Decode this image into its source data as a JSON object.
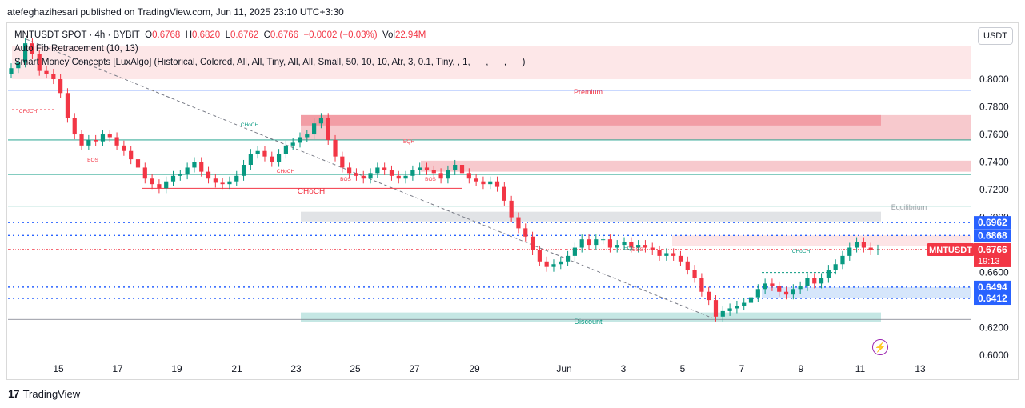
{
  "header": {
    "published_by": "atefeghazihesari published on TradingView.com, Jun 11, 2025 23:10 UTC+3:30"
  },
  "legend": {
    "symbol": "MNTUSDT SPOT · 4h · BYBIT",
    "o_label": "O",
    "o_value": "0.6768",
    "h_label": "H",
    "h_value": "0.6820",
    "l_label": "L",
    "l_value": "0.6762",
    "c_label": "C",
    "c_value": "0.6766",
    "change": "−0.0002 (−0.03%)",
    "vol_label": "Vol",
    "vol_value": "22.94M",
    "indicator_fib": "Auto Fib Retracement (10, 13)",
    "indicator_smc": "Smart Money Concepts [LuxAlgo] (Historical, Colored, All, All, Tiny, All, All, Small, 50, 10, 10, Atr, 3, 0.1, Tiny, , 1, ──, ──, ──)"
  },
  "currency_button": "USDT",
  "footer": {
    "brand_mark": "17",
    "brand_name": "TradingView"
  },
  "icons": {
    "lightning": "lightning-icon",
    "brand": "tradingview-logo-icon"
  },
  "colors": {
    "up": "#089981",
    "down": "#f23645",
    "premium": "#f8bcc1",
    "discount": "#b2dfdb",
    "fib_blue": "#2962ff"
  },
  "chart_data": {
    "type": "candlestick",
    "timeframe": "4h",
    "y_scale": "linear",
    "ylim": [
      0.585,
      0.84
    ],
    "x_tick_labels": [
      "15",
      "17",
      "19",
      "21",
      "23",
      "25",
      "27",
      "29",
      "Jun",
      "3",
      "5",
      "7",
      "9",
      "11",
      "13"
    ],
    "y_tick_labels": [
      "0.8000",
      "0.7800",
      "0.7600",
      "0.7400",
      "0.7200",
      "0.7000",
      "0.6600",
      "0.6200",
      "0.6000"
    ],
    "price_badges": [
      {
        "value": "0.6962",
        "color": "#2962ff"
      },
      {
        "value": "0.6868",
        "color": "#2962ff"
      },
      {
        "value": "0.6766",
        "secondary": "19:13",
        "color": "#f23645",
        "tag": "MNTUSDT"
      },
      {
        "value": "0.6494",
        "color": "#2962ff"
      },
      {
        "value": "0.6412",
        "color": "#2962ff"
      }
    ],
    "zones": {
      "premium_label": "Premium",
      "equilibrium_label": "Equilibrium",
      "discount_label": "Discount"
    },
    "structure_labels": [
      {
        "text": "CHoCH",
        "color": "#f23645"
      },
      {
        "text": "BOS",
        "color": "#f23645"
      },
      {
        "text": "CHoCH",
        "color": "#089981"
      },
      {
        "text": "CHoCH",
        "color": "#f23645"
      },
      {
        "text": "CHoCH",
        "color": "#f23645"
      },
      {
        "text": "BOS",
        "color": "#f23645"
      },
      {
        "text": "EQH",
        "color": "#f23645"
      },
      {
        "text": "BOS",
        "color": "#f23645"
      },
      {
        "text": "EQL",
        "color": "#089981"
      },
      {
        "text": "BOS",
        "color": "#f23645"
      },
      {
        "text": "CHoCH",
        "color": "#089981"
      }
    ],
    "series_close": [
      0.808,
      0.812,
      0.826,
      0.818,
      0.806,
      0.804,
      0.8,
      0.79,
      0.772,
      0.76,
      0.752,
      0.756,
      0.755,
      0.76,
      0.758,
      0.752,
      0.748,
      0.742,
      0.736,
      0.728,
      0.724,
      0.721,
      0.726,
      0.73,
      0.731,
      0.736,
      0.74,
      0.733,
      0.728,
      0.725,
      0.724,
      0.726,
      0.73,
      0.738,
      0.746,
      0.748,
      0.744,
      0.74,
      0.746,
      0.752,
      0.754,
      0.758,
      0.76,
      0.768,
      0.772,
      0.756,
      0.744,
      0.736,
      0.732,
      0.73,
      0.728,
      0.732,
      0.736,
      0.734,
      0.73,
      0.728,
      0.73,
      0.734,
      0.736,
      0.734,
      0.732,
      0.728,
      0.734,
      0.738,
      0.732,
      0.728,
      0.726,
      0.724,
      0.726,
      0.722,
      0.712,
      0.7,
      0.692,
      0.686,
      0.676,
      0.668,
      0.664,
      0.666,
      0.668,
      0.672,
      0.678,
      0.684,
      0.68,
      0.684,
      0.684,
      0.678,
      0.68,
      0.682,
      0.678,
      0.68,
      0.678,
      0.676,
      0.672,
      0.674,
      0.672,
      0.668,
      0.662,
      0.656,
      0.646,
      0.64,
      0.628,
      0.632,
      0.634,
      0.636,
      0.638,
      0.642,
      0.648,
      0.652,
      0.65,
      0.646,
      0.644,
      0.648,
      0.65,
      0.656,
      0.652,
      0.656,
      0.662,
      0.666,
      0.672,
      0.678,
      0.682,
      0.678,
      0.676,
      0.6766
    ],
    "fib_levels_no_label": [
      0.792,
      0.756,
      0.731,
      0.708,
      0.626
    ]
  }
}
